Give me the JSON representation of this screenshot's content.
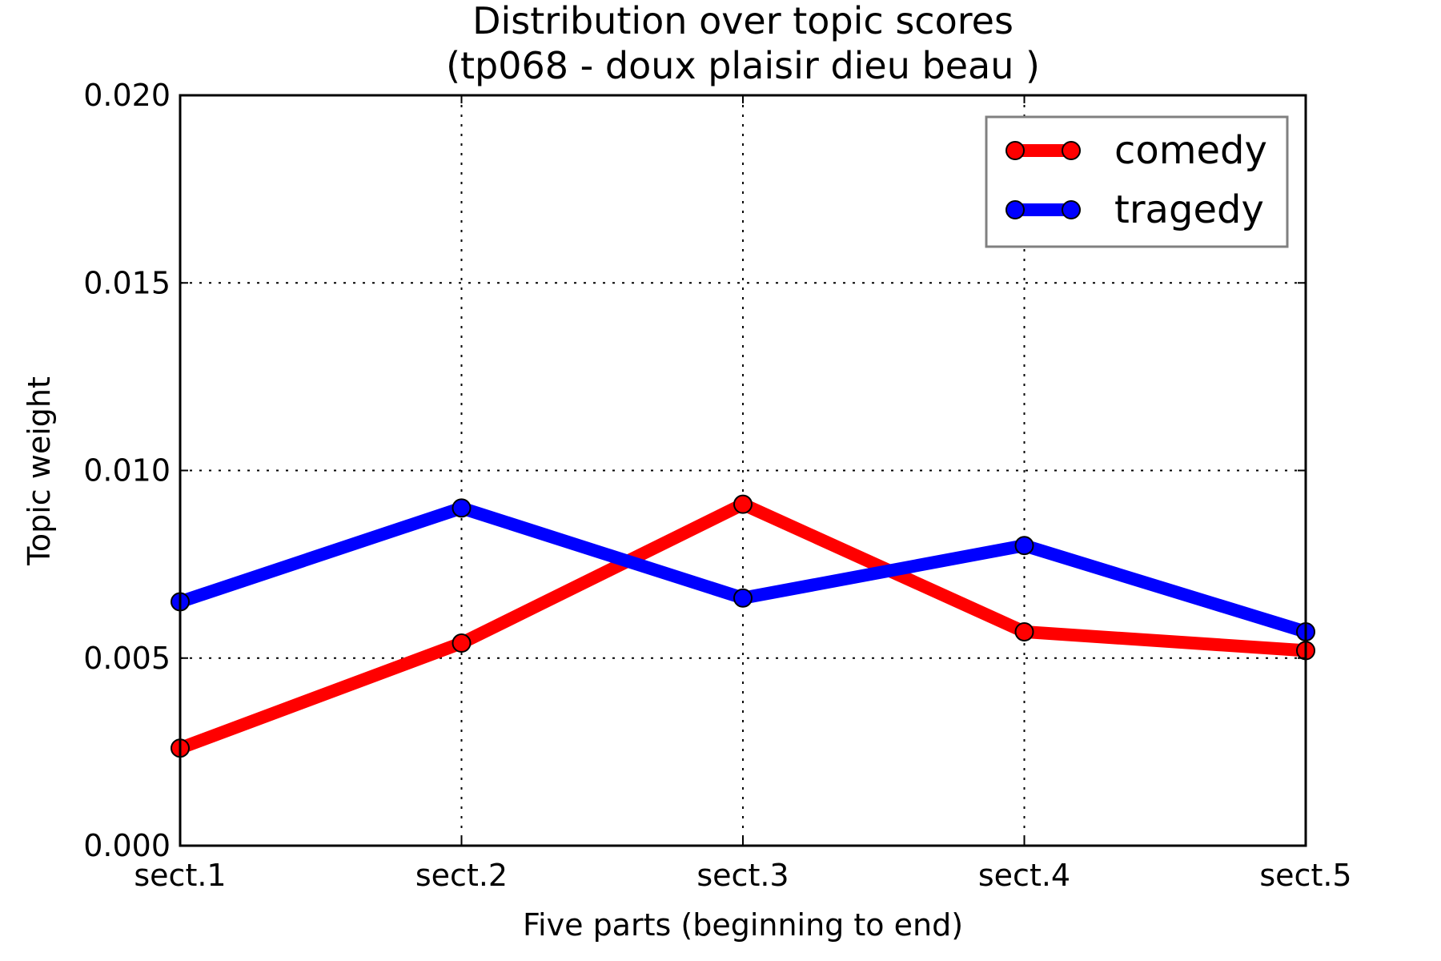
{
  "chart_data": {
    "type": "line",
    "title": "Distribution over topic scores",
    "subtitle": "(tp068 - doux plaisir dieu beau )",
    "xlabel": "Five parts (beginning to end)",
    "ylabel": "Topic weight",
    "categories": [
      "sect.1",
      "sect.2",
      "sect.3",
      "sect.4",
      "sect.5"
    ],
    "ylim": [
      0,
      0.02
    ],
    "yticks": [
      "0.000",
      "0.005",
      "0.010",
      "0.015",
      "0.020"
    ],
    "grid": true,
    "legend_position": "top-right",
    "series": [
      {
        "name": "comedy",
        "color": "#ff0000",
        "values": [
          0.0026,
          0.0054,
          0.0091,
          0.0057,
          0.0052
        ]
      },
      {
        "name": "tragedy",
        "color": "#0000ff",
        "values": [
          0.0065,
          0.009,
          0.0066,
          0.008,
          0.0057
        ]
      }
    ]
  }
}
